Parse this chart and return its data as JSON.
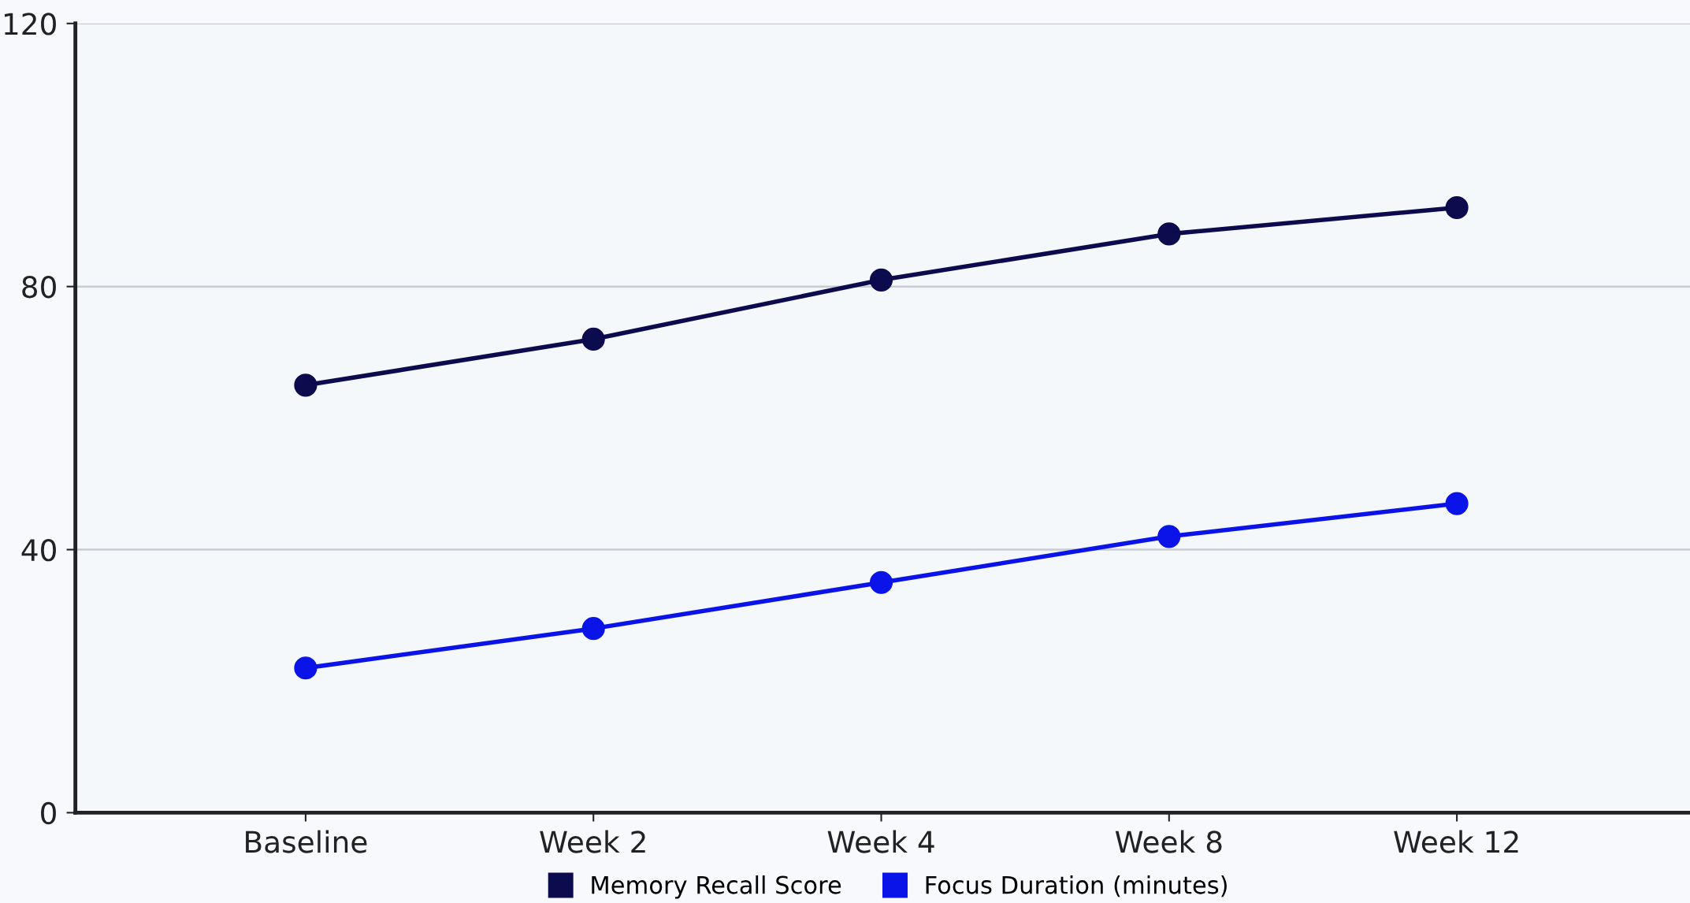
{
  "chart_data": {
    "type": "line",
    "categories": [
      "Baseline",
      "Week 2",
      "Week 4",
      "Week 8",
      "Week 12"
    ],
    "series": [
      {
        "name": "Memory Recall Score",
        "color": "#0b0b4d",
        "values": [
          65,
          72,
          81,
          88,
          92
        ]
      },
      {
        "name": "Focus Duration (minutes)",
        "color": "#0a14e8",
        "values": [
          22,
          28,
          35,
          42,
          47
        ]
      }
    ],
    "ylim": [
      0,
      120
    ],
    "yticks": [
      0,
      40,
      80,
      120
    ],
    "grid": "y",
    "legend": "bottom",
    "marker": "circle",
    "line_style": "solid"
  }
}
